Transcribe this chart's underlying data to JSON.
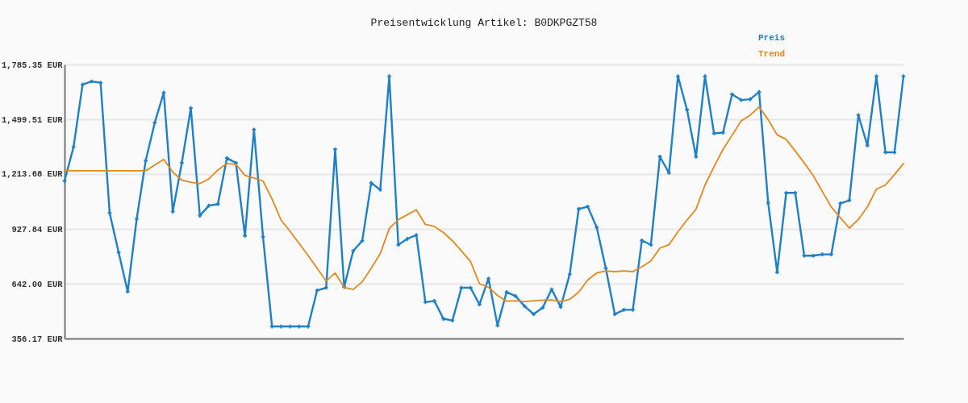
{
  "chart_data": {
    "type": "line",
    "title": "Preisentwicklung Artikel: B0DKPGZT58",
    "categories": [
      null,
      null,
      null,
      null,
      null,
      null,
      null,
      null,
      null,
      null,
      null,
      null,
      null,
      null,
      null,
      null,
      null,
      null,
      null,
      null,
      null,
      null,
      null,
      null,
      null,
      null,
      null,
      null,
      null,
      null,
      null,
      null,
      null,
      null,
      null,
      null,
      null,
      null,
      null,
      null,
      null,
      null,
      null,
      null,
      null,
      null,
      null,
      null,
      null,
      null,
      null,
      null,
      null,
      null,
      null,
      null,
      null,
      null,
      null,
      null,
      null,
      null,
      null,
      null,
      null,
      null,
      null,
      null,
      null,
      null,
      null,
      null,
      null,
      null,
      null,
      null,
      null,
      null,
      null,
      null,
      null,
      null,
      null,
      null,
      null,
      null,
      null,
      null,
      null,
      null,
      null,
      null,
      null,
      null
    ],
    "series": [
      {
        "name": "Preis",
        "color": "#1f80c8",
        "marker": "cross",
        "values": [
          1178,
          1355,
          1681,
          1697,
          1690,
          1011,
          805,
          601,
          980,
          1284,
          1482,
          1639,
          1018,
          1272,
          1558,
          997,
          1049,
          1057,
          1297,
          1272,
          892,
          1446,
          887,
          419,
          419,
          419,
          419,
          419,
          607,
          621,
          1343,
          625,
          813,
          866,
          1168,
          1132,
          1724,
          845,
          876,
          896,
          546,
          552,
          459,
          450,
          621,
          621,
          534,
          669,
          424,
          598,
          577,
          525,
          483,
          517,
          612,
          521,
          691,
          1032,
          1044,
          935,
          723,
          483,
          506,
          506,
          868,
          845,
          1305,
          1220,
          1724,
          1550,
          1304,
          1724,
          1426,
          1430,
          1630,
          1600,
          1604,
          1642,
          1064,
          702,
          1116,
          1116,
          788,
          788,
          795,
          795,
          1061,
          1077,
          1521,
          1363,
          1724,
          1327,
          1327,
          1724
        ]
      },
      {
        "name": "Trend",
        "color": "#e3881f",
        "values": [
          1231,
          1231,
          1231,
          1231,
          1231,
          1231,
          1231,
          1231,
          1231,
          1231,
          1261,
          1290,
          1224,
          1182,
          1171,
          1164,
          1189,
          1235,
          1269,
          1265,
          1207,
          1193,
          1178,
          1084,
          974,
          915,
          852,
          789,
          723,
          656,
          698,
          623,
          612,
          652,
          723,
          799,
          930,
          976,
          1002,
          1028,
          951,
          941,
          909,
          866,
          813,
          758,
          642,
          623,
          581,
          551,
          553,
          549,
          553,
          556,
          557,
          549,
          561,
          598,
          662,
          698,
          709,
          705,
          709,
          705,
          730,
          761,
          828,
          845,
          913,
          974,
          1031,
          1157,
          1252,
          1343,
          1416,
          1491,
          1521,
          1564,
          1498,
          1418,
          1395,
          1334,
          1272,
          1206,
          1123,
          1042,
          986,
          932,
          977,
          1042,
          1135,
          1157,
          1211,
          1269
        ]
      }
    ],
    "ylim": [
      356.17,
      1785.35
    ],
    "yticks": [
      {
        "value": 356.17,
        "label": "356.17 EUR"
      },
      {
        "value": 642.0,
        "label": "642.00 EUR"
      },
      {
        "value": 927.84,
        "label": "927.84 EUR"
      },
      {
        "value": 1213.68,
        "label": "1,213.68 EUR"
      },
      {
        "value": 1499.51,
        "label": "1,499.51 EUR"
      },
      {
        "value": 1785.35,
        "label": "1,785.35 EUR"
      }
    ],
    "grid": "y",
    "legend": "top right",
    "tick_labels": "y"
  }
}
